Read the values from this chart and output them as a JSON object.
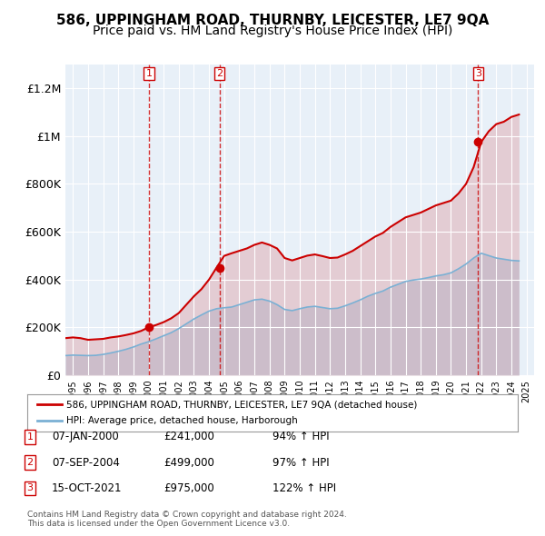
{
  "title": "586, UPPINGHAM ROAD, THURNBY, LEICESTER, LE7 9QA",
  "subtitle": "Price paid vs. HM Land Registry's House Price Index (HPI)",
  "ylabel": "",
  "background_color": "#e8f0f8",
  "plot_background": "#e8f0f8",
  "red_line_label": "586, UPPINGHAM ROAD, THURNBY, LEICESTER, LE7 9QA (detached house)",
  "blue_line_label": "HPI: Average price, detached house, Harborough",
  "footer": "Contains HM Land Registry data © Crown copyright and database right 2024.\nThis data is licensed under the Open Government Licence v3.0.",
  "transactions": [
    {
      "num": 1,
      "date": "07-JAN-2000",
      "price": "£241,000",
      "hpi": "94% ↑ HPI",
      "year": 2000.03
    },
    {
      "num": 2,
      "date": "07-SEP-2004",
      "price": "£499,000",
      "hpi": "97% ↑ HPI",
      "year": 2004.69
    },
    {
      "num": 3,
      "date": "15-OCT-2021",
      "price": "£975,000",
      "hpi": "122% ↑ HPI",
      "year": 2021.79
    }
  ],
  "ylim": [
    0,
    1300000
  ],
  "yticks": [
    0,
    200000,
    400000,
    600000,
    800000,
    1000000,
    1200000
  ],
  "ytick_labels": [
    "£0",
    "£200K",
    "£400K",
    "£600K",
    "£800K",
    "£1M",
    "£1.2M"
  ],
  "xlim_start": 1994.5,
  "xlim_end": 2025.5,
  "red_color": "#cc0000",
  "blue_color": "#7ab0d4",
  "dashed_color": "#cc0000",
  "grid_color": "#ffffff",
  "title_fontsize": 11,
  "subtitle_fontsize": 10,
  "tick_fontsize": 9,
  "red_data_x": [
    1994.5,
    1995.0,
    1995.5,
    1996.0,
    1996.5,
    1997.0,
    1997.5,
    1998.0,
    1998.5,
    1999.0,
    1999.5,
    2000.0,
    2000.5,
    2001.0,
    2001.5,
    2002.0,
    2002.5,
    2003.0,
    2003.5,
    2004.0,
    2004.5,
    2005.0,
    2005.5,
    2006.0,
    2006.5,
    2007.0,
    2007.5,
    2008.0,
    2008.5,
    2009.0,
    2009.5,
    2010.0,
    2010.5,
    2011.0,
    2011.5,
    2012.0,
    2012.5,
    2013.0,
    2013.5,
    2014.0,
    2014.5,
    2015.0,
    2015.5,
    2016.0,
    2016.5,
    2017.0,
    2017.5,
    2018.0,
    2018.5,
    2019.0,
    2019.5,
    2020.0,
    2020.5,
    2021.0,
    2021.5,
    2022.0,
    2022.5,
    2023.0,
    2023.5,
    2024.0,
    2024.5
  ],
  "red_data_y": [
    155000,
    158000,
    155000,
    148000,
    150000,
    152000,
    158000,
    162000,
    168000,
    175000,
    185000,
    200000,
    210000,
    222000,
    238000,
    260000,
    295000,
    330000,
    360000,
    400000,
    450000,
    499000,
    510000,
    520000,
    530000,
    545000,
    555000,
    545000,
    530000,
    490000,
    480000,
    490000,
    500000,
    505000,
    498000,
    490000,
    492000,
    505000,
    520000,
    540000,
    560000,
    580000,
    595000,
    620000,
    640000,
    660000,
    670000,
    680000,
    695000,
    710000,
    720000,
    730000,
    760000,
    800000,
    870000,
    975000,
    1020000,
    1050000,
    1060000,
    1080000,
    1090000
  ],
  "blue_data_x": [
    1994.5,
    1995.0,
    1995.5,
    1996.0,
    1996.5,
    1997.0,
    1997.5,
    1998.0,
    1998.5,
    1999.0,
    1999.5,
    2000.0,
    2000.5,
    2001.0,
    2001.5,
    2002.0,
    2002.5,
    2003.0,
    2003.5,
    2004.0,
    2004.5,
    2005.0,
    2005.5,
    2006.0,
    2006.5,
    2007.0,
    2007.5,
    2008.0,
    2008.5,
    2009.0,
    2009.5,
    2010.0,
    2010.5,
    2011.0,
    2011.5,
    2012.0,
    2012.5,
    2013.0,
    2013.5,
    2014.0,
    2014.5,
    2015.0,
    2015.5,
    2016.0,
    2016.5,
    2017.0,
    2017.5,
    2018.0,
    2018.5,
    2019.0,
    2019.5,
    2020.0,
    2020.5,
    2021.0,
    2021.5,
    2022.0,
    2022.5,
    2023.0,
    2023.5,
    2024.0,
    2024.5
  ],
  "blue_data_y": [
    82000,
    84000,
    83000,
    82000,
    83000,
    87000,
    93000,
    100000,
    108000,
    118000,
    130000,
    140000,
    152000,
    165000,
    178000,
    195000,
    215000,
    235000,
    252000,
    268000,
    278000,
    282000,
    285000,
    295000,
    305000,
    315000,
    318000,
    310000,
    295000,
    275000,
    270000,
    278000,
    285000,
    288000,
    283000,
    278000,
    280000,
    290000,
    302000,
    315000,
    330000,
    342000,
    352000,
    368000,
    380000,
    392000,
    398000,
    402000,
    408000,
    415000,
    420000,
    428000,
    445000,
    465000,
    490000,
    510000,
    500000,
    490000,
    485000,
    480000,
    478000
  ]
}
